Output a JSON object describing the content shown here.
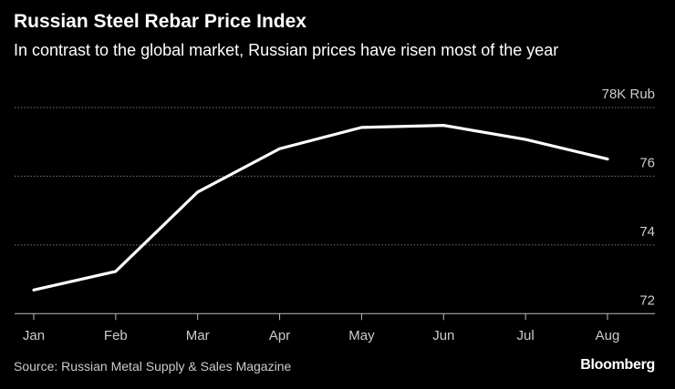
{
  "title": "Russian Steel Rebar Price Index",
  "subtitle": "In contrast to the global market, Russian prices have risen most of the year",
  "source": "Source: Russian Metal Supply & Sales Magazine",
  "brand": "Bloomberg",
  "chart_data": {
    "type": "line",
    "categories": [
      "Jan",
      "Feb",
      "Mar",
      "Apr",
      "May",
      "Jun",
      "Jul",
      "Aug"
    ],
    "series": [
      {
        "values": [
          72.69,
          73.23,
          75.54,
          76.8,
          77.42,
          77.48,
          77.07,
          76.5
        ]
      }
    ],
    "ylim": [
      72,
      78
    ],
    "yticks": [
      72,
      74,
      76,
      78
    ],
    "ytick_labels": [
      "72",
      "74",
      "76",
      "78K Rub"
    ],
    "grid": true,
    "line_color": "#ffffff",
    "background": "#000000"
  }
}
